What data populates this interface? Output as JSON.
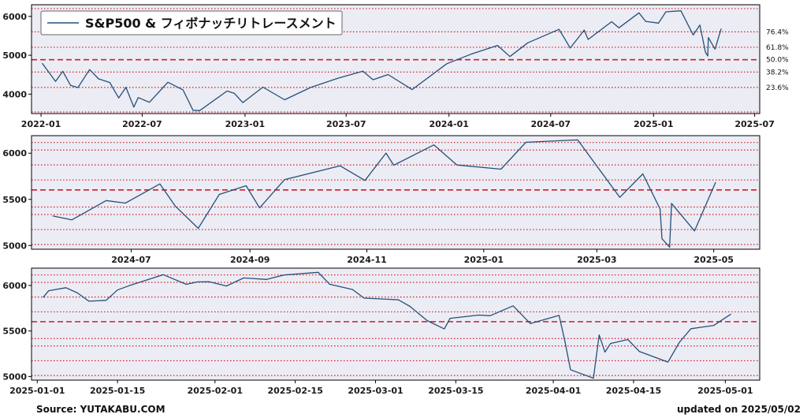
{
  "footer": {
    "source": "Source: YUTAKABU.COM",
    "updated": "updated on 2025/05/02"
  },
  "colors": {
    "line": "#24507a",
    "plot_bg": "#ececf4",
    "fib_line": "#d11b2a",
    "frame": "#000000"
  },
  "chart_data": [
    {
      "type": "line",
      "legend": "S&P500 & フィボナッチリトレースメント",
      "legend_position": "top-left",
      "x_axis": "date",
      "xlim": [
        "2021-12-15",
        "2025-07-10"
      ],
      "ylim": [
        3500,
        6300
      ],
      "yticks": [
        4000,
        5000,
        6000
      ],
      "xticks": [
        "2022-01",
        "2022-07",
        "2023-01",
        "2023-07",
        "2024-01",
        "2024-07",
        "2025-01",
        "2025-07"
      ],
      "series": [
        {
          "points": [
            [
              "2022-01-03",
              4796
            ],
            [
              "2022-01-27",
              4326
            ],
            [
              "2022-02-09",
              4587
            ],
            [
              "2022-02-23",
              4225
            ],
            [
              "2022-03-08",
              4170
            ],
            [
              "2022-03-29",
              4632
            ],
            [
              "2022-04-14",
              4393
            ],
            [
              "2022-05-04",
              4300
            ],
            [
              "2022-05-20",
              3901
            ],
            [
              "2022-06-02",
              4176
            ],
            [
              "2022-06-16",
              3667
            ],
            [
              "2022-06-24",
              3912
            ],
            [
              "2022-07-14",
              3790
            ],
            [
              "2022-08-16",
              4305
            ],
            [
              "2022-09-12",
              4110
            ],
            [
              "2022-09-30",
              3585
            ],
            [
              "2022-10-12",
              3577
            ],
            [
              "2022-11-30",
              4080
            ],
            [
              "2022-12-13",
              4019
            ],
            [
              "2022-12-28",
              3783
            ],
            [
              "2023-02-02",
              4179
            ],
            [
              "2023-03-13",
              3855
            ],
            [
              "2023-04-28",
              4169
            ],
            [
              "2023-06-16",
              4409
            ],
            [
              "2023-07-31",
              4589
            ],
            [
              "2023-08-18",
              4370
            ],
            [
              "2023-09-14",
              4505
            ],
            [
              "2023-10-27",
              4117
            ],
            [
              "2023-12-28",
              4783
            ],
            [
              "2024-02-09",
              5026
            ],
            [
              "2024-03-28",
              5254
            ],
            [
              "2024-04-19",
              4967
            ],
            [
              "2024-05-21",
              5321
            ],
            [
              "2024-07-16",
              5667
            ],
            [
              "2024-08-05",
              5186
            ],
            [
              "2024-08-30",
              5648
            ],
            [
              "2024-09-06",
              5408
            ],
            [
              "2024-10-18",
              5864
            ],
            [
              "2024-10-31",
              5705
            ],
            [
              "2024-12-06",
              6090
            ],
            [
              "2024-12-18",
              5872
            ],
            [
              "2025-01-10",
              5827
            ],
            [
              "2025-01-23",
              6118
            ],
            [
              "2025-02-19",
              6144
            ],
            [
              "2025-03-13",
              5522
            ],
            [
              "2025-03-25",
              5776
            ],
            [
              "2025-04-04",
              5074
            ],
            [
              "2025-04-08",
              4982
            ],
            [
              "2025-04-09",
              5456
            ],
            [
              "2025-04-21",
              5158
            ],
            [
              "2025-05-02",
              5686
            ]
          ]
        }
      ],
      "fibonacci": [
        {
          "label": "76.4%",
          "value": 5602
        },
        {
          "label": "61.8%",
          "value": 5206
        },
        {
          "label": "50.0%",
          "value": 4886
        },
        {
          "label": "38.2%",
          "value": 4567
        },
        {
          "label": "23.6%",
          "value": 4172
        }
      ],
      "fib_guides": [
        3540,
        6200
      ]
    },
    {
      "type": "line",
      "x_axis": "date",
      "xlim": [
        "2024-05-10",
        "2025-05-25"
      ],
      "ylim": [
        4960,
        6190
      ],
      "yticks": [
        5000,
        5500,
        6000
      ],
      "xticks": [
        "2024-07",
        "2024-09",
        "2024-11",
        "2025-01",
        "2025-03",
        "2025-05"
      ],
      "series": [
        {
          "points": [
            [
              "2024-05-21",
              5321
            ],
            [
              "2024-05-31",
              5278
            ],
            [
              "2024-06-18",
              5487
            ],
            [
              "2024-06-28",
              5460
            ],
            [
              "2024-07-16",
              5667
            ],
            [
              "2024-07-24",
              5427
            ],
            [
              "2024-08-05",
              5186
            ],
            [
              "2024-08-16",
              5554
            ],
            [
              "2024-08-30",
              5648
            ],
            [
              "2024-09-06",
              5408
            ],
            [
              "2024-09-19",
              5713
            ],
            [
              "2024-10-18",
              5864
            ],
            [
              "2024-10-31",
              5705
            ],
            [
              "2024-11-11",
              6001
            ],
            [
              "2024-11-15",
              5870
            ],
            [
              "2024-12-06",
              6090
            ],
            [
              "2024-12-18",
              5872
            ],
            [
              "2025-01-10",
              5827
            ],
            [
              "2025-01-23",
              6118
            ],
            [
              "2025-02-19",
              6144
            ],
            [
              "2025-03-13",
              5522
            ],
            [
              "2025-03-25",
              5776
            ],
            [
              "2025-04-03",
              5396
            ],
            [
              "2025-04-04",
              5074
            ],
            [
              "2025-04-08",
              4982
            ],
            [
              "2025-04-09",
              5456
            ],
            [
              "2025-04-21",
              5158
            ],
            [
              "2025-05-02",
              5686
            ]
          ]
        }
      ],
      "fibonacci": [
        {
          "label": "76.4%",
          "value": 5602
        }
      ],
      "fib_guides": [
        5011,
        5173,
        5336,
        5417,
        5710,
        5873,
        6034,
        6116
      ]
    },
    {
      "type": "line",
      "x_axis": "date",
      "xlim": [
        "2024-12-31",
        "2025-05-07"
      ],
      "ylim": [
        4960,
        6190
      ],
      "yticks": [
        5000,
        5500,
        6000
      ],
      "xticks": [
        "2025-01-01",
        "2025-01-15",
        "2025-02-01",
        "2025-02-15",
        "2025-03-01",
        "2025-03-15",
        "2025-04-01",
        "2025-04-15",
        "2025-05-01"
      ],
      "series": [
        {
          "points": [
            [
              "2025-01-02",
              5868
            ],
            [
              "2025-01-03",
              5942
            ],
            [
              "2025-01-06",
              5975
            ],
            [
              "2025-01-08",
              5918
            ],
            [
              "2025-01-10",
              5827
            ],
            [
              "2025-01-13",
              5837
            ],
            [
              "2025-01-15",
              5950
            ],
            [
              "2025-01-17",
              5997
            ],
            [
              "2025-01-23",
              6118
            ],
            [
              "2025-01-27",
              6012
            ],
            [
              "2025-01-29",
              6039
            ],
            [
              "2025-01-31",
              6040
            ],
            [
              "2025-02-03",
              5994
            ],
            [
              "2025-02-06",
              6083
            ],
            [
              "2025-02-10",
              6066
            ],
            [
              "2025-02-13",
              6115
            ],
            [
              "2025-02-19",
              6144
            ],
            [
              "2025-02-21",
              6013
            ],
            [
              "2025-02-25",
              5955
            ],
            [
              "2025-02-27",
              5861
            ],
            [
              "2025-03-03",
              5849
            ],
            [
              "2025-03-05",
              5842
            ],
            [
              "2025-03-07",
              5770
            ],
            [
              "2025-03-10",
              5614
            ],
            [
              "2025-03-13",
              5522
            ],
            [
              "2025-03-14",
              5639
            ],
            [
              "2025-03-19",
              5675
            ],
            [
              "2025-03-21",
              5668
            ],
            [
              "2025-03-25",
              5776
            ],
            [
              "2025-03-28",
              5581
            ],
            [
              "2025-04-02",
              5671
            ],
            [
              "2025-04-03",
              5396
            ],
            [
              "2025-04-04",
              5074
            ],
            [
              "2025-04-08",
              4982
            ],
            [
              "2025-04-09",
              5456
            ],
            [
              "2025-04-10",
              5268
            ],
            [
              "2025-04-11",
              5363
            ],
            [
              "2025-04-14",
              5406
            ],
            [
              "2025-04-16",
              5275
            ],
            [
              "2025-04-21",
              5158
            ],
            [
              "2025-04-23",
              5376
            ],
            [
              "2025-04-25",
              5525
            ],
            [
              "2025-04-29",
              5561
            ],
            [
              "2025-05-02",
              5686
            ]
          ]
        }
      ],
      "fibonacci": [
        {
          "label": "76.4%",
          "value": 5602
        }
      ],
      "fib_guides": [
        5011,
        5173,
        5336,
        5417,
        5710,
        5873,
        6034,
        6116
      ]
    }
  ]
}
